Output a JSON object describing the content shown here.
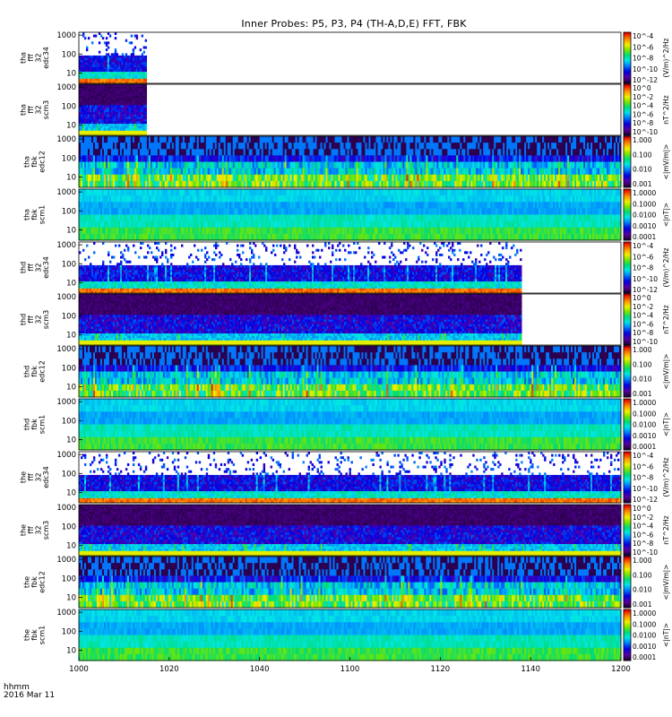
{
  "title": "Inner Probes: P5, P3, P4 (TH-A,D,E) FFT, FBK",
  "corner_labels": {
    "time_format": "hhmm",
    "date": "2016 Mar 11"
  },
  "x_axis": {
    "ticks": [
      "1000",
      "1020",
      "1040",
      "1100",
      "1120",
      "1140",
      "1200"
    ]
  },
  "colors": {
    "background": "#ffffff",
    "axis": "#000000"
  },
  "chart_data": {
    "type": "heatmap",
    "title": "Inner Probes: P5, P3, P4 (TH-A,D,E) FFT, FBK",
    "x_ticks": [
      "1000",
      "1020",
      "1040",
      "1100",
      "1120",
      "1140",
      "1200"
    ],
    "x_range_hhmm": [
      "1000",
      "1200"
    ],
    "y_ticks": [
      "10",
      "100",
      "1000"
    ],
    "y_scale": "log",
    "colormap": "rainbow (blue-low to red-high)",
    "panels": [
      {
        "label": [
          "tha",
          "fff",
          "32",
          "edc34"
        ],
        "unit": "(V/m)^2/Hz",
        "cb_ticks": [
          "10^-4",
          "10^-6",
          "10^-8",
          "10^-10",
          "10^-12"
        ],
        "data_end_hhmm": "1015"
      },
      {
        "label": [
          "tha",
          "fff",
          "32",
          "scm3"
        ],
        "unit": "nT^2/Hz",
        "cb_ticks": [
          "10^0",
          "10^-2",
          "10^-4",
          "10^-6",
          "10^-8",
          "10^-10"
        ],
        "data_end_hhmm": "1015"
      },
      {
        "label": [
          "tha",
          "fbk",
          "edc12"
        ],
        "unit": "<|mV/m|>",
        "cb_ticks": [
          "1.000",
          "0.100",
          "0.010",
          "0.001"
        ],
        "data_end_hhmm": "1200"
      },
      {
        "label": [
          "tha",
          "fbk",
          "scm1"
        ],
        "unit": "<|nT|>",
        "cb_ticks": [
          "1.0000",
          "0.1000",
          "0.0100",
          "0.0010",
          "0.0001"
        ],
        "data_end_hhmm": "1200"
      },
      {
        "label": [
          "thd",
          "fff",
          "32",
          "edc34"
        ],
        "unit": "(V/m)^2/Hz",
        "cb_ticks": [
          "10^-4",
          "10^-6",
          "10^-8",
          "10^-10",
          "10^-12"
        ],
        "data_end_hhmm": "1138"
      },
      {
        "label": [
          "thd",
          "fff",
          "32",
          "scm3"
        ],
        "unit": "nT^2/Hz",
        "cb_ticks": [
          "10^0",
          "10^-2",
          "10^-4",
          "10^-6",
          "10^-8",
          "10^-10"
        ],
        "data_end_hhmm": "1138"
      },
      {
        "label": [
          "thd",
          "fbk",
          "edc12"
        ],
        "unit": "<|mV/m|>",
        "cb_ticks": [
          "1.000",
          "0.100",
          "0.010",
          "0.001"
        ],
        "data_end_hhmm": "1200"
      },
      {
        "label": [
          "thd",
          "fbk",
          "scm1"
        ],
        "unit": "<|nT|>",
        "cb_ticks": [
          "1.0000",
          "0.1000",
          "0.0100",
          "0.0010",
          "0.0001"
        ],
        "data_end_hhmm": "1200"
      },
      {
        "label": [
          "the",
          "fff",
          "32",
          "edc34"
        ],
        "unit": "(V/m)^2/Hz",
        "cb_ticks": [
          "10^-4",
          "10^-6",
          "10^-8",
          "10^-10",
          "10^-12"
        ],
        "data_end_hhmm": "1200"
      },
      {
        "label": [
          "the",
          "fff",
          "32",
          "scm3"
        ],
        "unit": "nT^2/Hz",
        "cb_ticks": [
          "10^0",
          "10^-2",
          "10^-4",
          "10^-6",
          "10^-8",
          "10^-10"
        ],
        "data_end_hhmm": "1200"
      },
      {
        "label": [
          "the",
          "fbk",
          "edc12"
        ],
        "unit": "<|mV/m|>",
        "cb_ticks": [
          "1.000",
          "0.100",
          "0.010",
          "0.001"
        ],
        "data_end_hhmm": "1200"
      },
      {
        "label": [
          "the",
          "fbk",
          "scm1"
        ],
        "unit": "<|nT|>",
        "cb_ticks": [
          "1.0000",
          "0.1000",
          "0.0100",
          "0.0010",
          "0.0001"
        ],
        "data_end_hhmm": "1200"
      }
    ]
  }
}
